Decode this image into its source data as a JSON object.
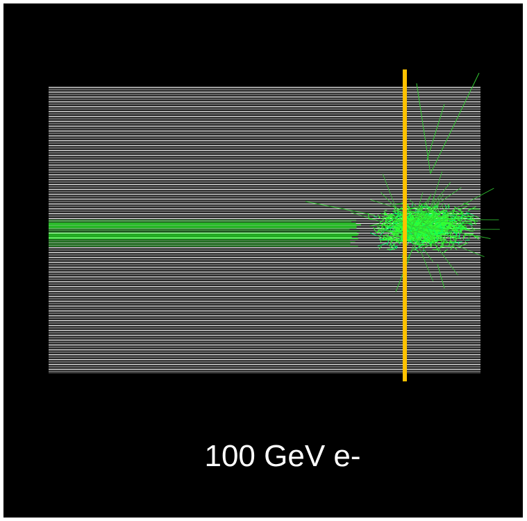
{
  "caption": "100 GeV e-"
}
